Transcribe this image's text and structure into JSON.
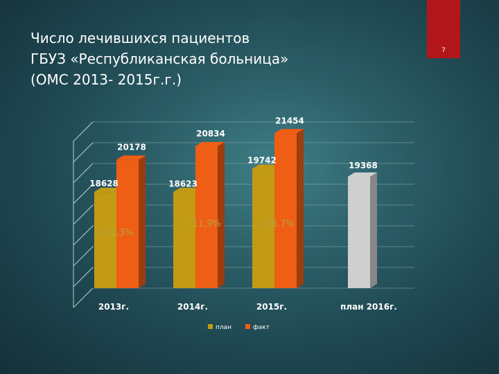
{
  "slide": {
    "title": "Число лечившихся пациентов\nГБУЗ «Республиканская больница»\n (ОМС 2013- 2015г.г.)",
    "number": "7"
  },
  "colors": {
    "plan": "#c29a14",
    "fact": "#ee5e14",
    "plan_2016": "#cfcfcf",
    "percent_text": "#b8a23c",
    "accent_tab": "#b3161a"
  },
  "chart_data": {
    "type": "bar",
    "title": "",
    "xlabel": "",
    "ylabel": "",
    "ylim": [
      14000,
      22000
    ],
    "grid": true,
    "legend_position": "bottom",
    "categories": [
      "2013г.",
      "2014г.",
      "2015г.",
      "план 2016г."
    ],
    "series": [
      {
        "name": "план",
        "values": [
          18628,
          18623,
          19742,
          19368
        ]
      },
      {
        "name": "факт",
        "values": [
          20178,
          20834,
          21454,
          null
        ]
      }
    ],
    "annotations": [
      "108,3%",
      "111,9%",
      "108,7%"
    ]
  }
}
